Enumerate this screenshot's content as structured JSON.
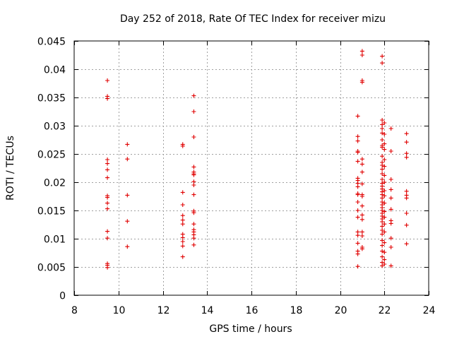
{
  "chart_data": {
    "type": "scatter",
    "title": "Day 252 of 2018, Rate Of TEC Index for receiver mizu",
    "xlabel": "GPS time / hours",
    "ylabel": "ROTI / TECUs",
    "xlim": [
      8,
      24
    ],
    "ylim": [
      0,
      0.045
    ],
    "xticks": [
      8,
      10,
      12,
      14,
      16,
      18,
      20,
      22,
      24
    ],
    "yticks": [
      0,
      0.005,
      0.01,
      0.015,
      0.02,
      0.025,
      0.03,
      0.035,
      0.04,
      0.045
    ],
    "xtick_labels": [
      "8",
      "10",
      "12",
      "14",
      "16",
      "18",
      "20",
      "22",
      "24"
    ],
    "ytick_labels": [
      "0",
      "0.005",
      "0.01",
      "0.015",
      "0.02",
      "0.025",
      "0.03",
      "0.035",
      "0.04",
      "0.045"
    ],
    "grid": true,
    "marker": "+",
    "color": "#e00000",
    "series": [
      {
        "name": "ROTI",
        "points": [
          [
            9.5,
            0.038
          ],
          [
            9.5,
            0.0352
          ],
          [
            9.5,
            0.0348
          ],
          [
            9.5,
            0.024
          ],
          [
            9.5,
            0.0233
          ],
          [
            9.5,
            0.0222
          ],
          [
            9.5,
            0.0208
          ],
          [
            9.5,
            0.0176
          ],
          [
            9.5,
            0.0173
          ],
          [
            9.5,
            0.0163
          ],
          [
            9.5,
            0.0153
          ],
          [
            9.5,
            0.0113
          ],
          [
            9.5,
            0.0101
          ],
          [
            9.5,
            0.0056
          ],
          [
            9.5,
            0.0053
          ],
          [
            9.5,
            0.0049
          ],
          [
            10.4,
            0.0267
          ],
          [
            10.4,
            0.0241
          ],
          [
            10.4,
            0.0177
          ],
          [
            10.4,
            0.0131
          ],
          [
            10.4,
            0.0086
          ],
          [
            12.9,
            0.0267
          ],
          [
            12.9,
            0.0264
          ],
          [
            12.9,
            0.0182
          ],
          [
            12.9,
            0.016
          ],
          [
            12.9,
            0.0141
          ],
          [
            12.9,
            0.0133
          ],
          [
            12.9,
            0.0126
          ],
          [
            12.9,
            0.0108
          ],
          [
            12.9,
            0.0102
          ],
          [
            12.9,
            0.0095
          ],
          [
            12.9,
            0.0087
          ],
          [
            12.9,
            0.0068
          ],
          [
            13.4,
            0.0353
          ],
          [
            13.4,
            0.0325
          ],
          [
            13.4,
            0.028
          ],
          [
            13.4,
            0.0227
          ],
          [
            13.4,
            0.0218
          ],
          [
            13.4,
            0.0215
          ],
          [
            13.4,
            0.0213
          ],
          [
            13.4,
            0.0201
          ],
          [
            13.4,
            0.0195
          ],
          [
            13.4,
            0.0178
          ],
          [
            13.4,
            0.0149
          ],
          [
            13.4,
            0.0146
          ],
          [
            13.4,
            0.0126
          ],
          [
            13.4,
            0.0116
          ],
          [
            13.4,
            0.0112
          ],
          [
            13.4,
            0.0107
          ],
          [
            13.4,
            0.0101
          ],
          [
            13.4,
            0.0089
          ],
          [
            20.8,
            0.0317
          ],
          [
            20.8,
            0.0281
          ],
          [
            20.8,
            0.0273
          ],
          [
            20.8,
            0.0255
          ],
          [
            20.8,
            0.0253
          ],
          [
            20.8,
            0.0237
          ],
          [
            20.8,
            0.0207
          ],
          [
            20.8,
            0.0203
          ],
          [
            20.8,
            0.0198
          ],
          [
            20.8,
            0.0192
          ],
          [
            20.8,
            0.018
          ],
          [
            20.8,
            0.0178
          ],
          [
            20.8,
            0.0165
          ],
          [
            20.8,
            0.015
          ],
          [
            20.8,
            0.0138
          ],
          [
            20.8,
            0.0112
          ],
          [
            20.8,
            0.0106
          ],
          [
            20.8,
            0.0092
          ],
          [
            20.8,
            0.0078
          ],
          [
            20.8,
            0.0073
          ],
          [
            20.8,
            0.0051
          ],
          [
            21.0,
            0.0432
          ],
          [
            21.0,
            0.0425
          ],
          [
            21.0,
            0.038
          ],
          [
            21.0,
            0.0377
          ],
          [
            21.0,
            0.0241
          ],
          [
            21.0,
            0.0232
          ],
          [
            21.0,
            0.0218
          ],
          [
            21.0,
            0.0197
          ],
          [
            21.0,
            0.0178
          ],
          [
            21.0,
            0.0175
          ],
          [
            21.0,
            0.0158
          ],
          [
            21.0,
            0.0142
          ],
          [
            21.0,
            0.0134
          ],
          [
            21.0,
            0.0112
          ],
          [
            21.0,
            0.0105
          ],
          [
            21.0,
            0.0085
          ],
          [
            21.0,
            0.0082
          ],
          [
            21.9,
            0.0423
          ],
          [
            21.9,
            0.0411
          ],
          [
            21.9,
            0.031
          ],
          [
            21.9,
            0.0302
          ],
          [
            21.9,
            0.0295
          ],
          [
            21.9,
            0.0287
          ],
          [
            21.9,
            0.0275
          ],
          [
            21.9,
            0.0265
          ],
          [
            21.9,
            0.0262
          ],
          [
            21.9,
            0.0246
          ],
          [
            21.9,
            0.0235
          ],
          [
            21.9,
            0.023
          ],
          [
            21.9,
            0.0223
          ],
          [
            21.9,
            0.0215
          ],
          [
            21.9,
            0.0205
          ],
          [
            21.9,
            0.0198
          ],
          [
            21.9,
            0.0193
          ],
          [
            21.9,
            0.0188
          ],
          [
            21.9,
            0.0183
          ],
          [
            21.9,
            0.0178
          ],
          [
            21.9,
            0.0172
          ],
          [
            21.9,
            0.0165
          ],
          [
            21.9,
            0.016
          ],
          [
            21.9,
            0.0155
          ],
          [
            21.9,
            0.015
          ],
          [
            21.9,
            0.0145
          ],
          [
            21.9,
            0.014
          ],
          [
            21.9,
            0.0135
          ],
          [
            21.9,
            0.013
          ],
          [
            21.9,
            0.0122
          ],
          [
            21.9,
            0.0115
          ],
          [
            21.9,
            0.0108
          ],
          [
            21.9,
            0.0097
          ],
          [
            21.9,
            0.0088
          ],
          [
            21.9,
            0.0078
          ],
          [
            21.9,
            0.0068
          ],
          [
            21.9,
            0.0058
          ],
          [
            21.9,
            0.0052
          ],
          [
            22.0,
            0.0305
          ],
          [
            22.0,
            0.0285
          ],
          [
            22.0,
            0.0268
          ],
          [
            22.0,
            0.0258
          ],
          [
            22.0,
            0.024
          ],
          [
            22.0,
            0.0228
          ],
          [
            22.0,
            0.0212
          ],
          [
            22.0,
            0.02
          ],
          [
            22.0,
            0.0185
          ],
          [
            22.0,
            0.0176
          ],
          [
            22.0,
            0.0163
          ],
          [
            22.0,
            0.0148
          ],
          [
            22.0,
            0.0138
          ],
          [
            22.0,
            0.0126
          ],
          [
            22.0,
            0.0112
          ],
          [
            22.0,
            0.0093
          ],
          [
            22.0,
            0.0076
          ],
          [
            22.0,
            0.0063
          ],
          [
            22.0,
            0.0055
          ],
          [
            22.3,
            0.0295
          ],
          [
            22.3,
            0.0255
          ],
          [
            22.3,
            0.0205
          ],
          [
            22.3,
            0.0187
          ],
          [
            22.3,
            0.0172
          ],
          [
            22.3,
            0.0152
          ],
          [
            22.3,
            0.0132
          ],
          [
            22.3,
            0.0127
          ],
          [
            22.3,
            0.0101
          ],
          [
            22.3,
            0.0085
          ],
          [
            22.3,
            0.0052
          ],
          [
            23.0,
            0.0286
          ],
          [
            23.0,
            0.0271
          ],
          [
            23.0,
            0.0251
          ],
          [
            23.0,
            0.0244
          ],
          [
            23.0,
            0.0184
          ],
          [
            23.0,
            0.0177
          ],
          [
            23.0,
            0.0172
          ],
          [
            23.0,
            0.0145
          ],
          [
            23.0,
            0.0124
          ],
          [
            23.0,
            0.0091
          ]
        ]
      }
    ]
  }
}
